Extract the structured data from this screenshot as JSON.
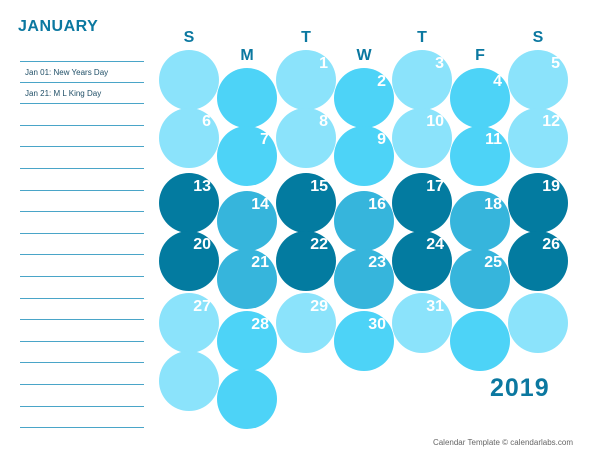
{
  "month": "JANUARY",
  "year": "2019",
  "footer": "Calendar Template © calendarlabs.com",
  "weekdays": [
    "S",
    "M",
    "T",
    "W",
    "T",
    "F",
    "S"
  ],
  "holidays": [
    "Jan 01: New Years Day",
    "Jan 21: M L King Day"
  ],
  "note_line_count": 17,
  "first_weekday": 2,
  "days_in_month": 31,
  "colors": {
    "title": "#0b78a0",
    "light": "#8be3fb",
    "bright": "#4dd3f7",
    "mid": "#36b5dc",
    "dark": "#037ba0"
  },
  "days": [
    "1",
    "2",
    "3",
    "4",
    "5",
    "6",
    "7",
    "8",
    "9",
    "10",
    "11",
    "12",
    "13",
    "14",
    "15",
    "16",
    "17",
    "18",
    "19",
    "20",
    "21",
    "22",
    "23",
    "24",
    "25",
    "26",
    "27",
    "28",
    "29",
    "30",
    "31"
  ]
}
